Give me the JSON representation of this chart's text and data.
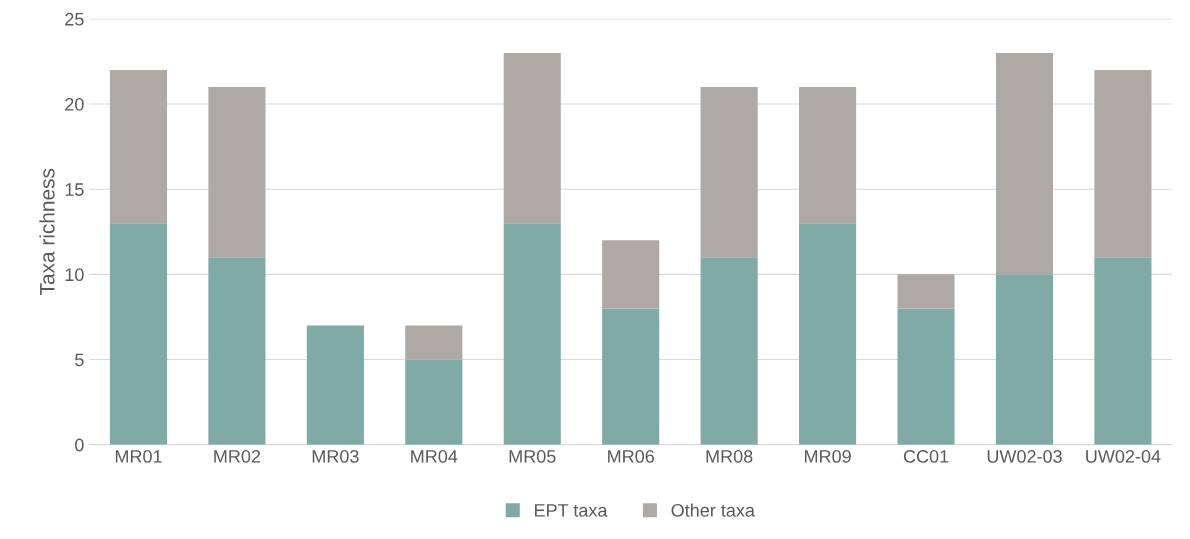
{
  "chart_data": {
    "type": "bar",
    "stacked": true,
    "ylabel": "Taxa richness",
    "categories": [
      "MR01",
      "MR02",
      "MR03",
      "MR04",
      "MR05",
      "MR06",
      "MR08",
      "MR09",
      "CC01",
      "UW02-03",
      "UW02-04"
    ],
    "series": [
      {
        "name": "EPT taxa",
        "color": "#80aaa5",
        "values": [
          13,
          11,
          7,
          5,
          13,
          8,
          11,
          13,
          8,
          10,
          11
        ]
      },
      {
        "name": "Other taxa",
        "color": "#aea9a5",
        "values": [
          9,
          10,
          0,
          2,
          10,
          4,
          10,
          8,
          2,
          13,
          11
        ]
      }
    ],
    "ylim": [
      0,
      25
    ],
    "yticks": [
      0,
      5,
      10,
      15,
      20,
      25
    ],
    "grid": "y",
    "legend": "bottom"
  }
}
